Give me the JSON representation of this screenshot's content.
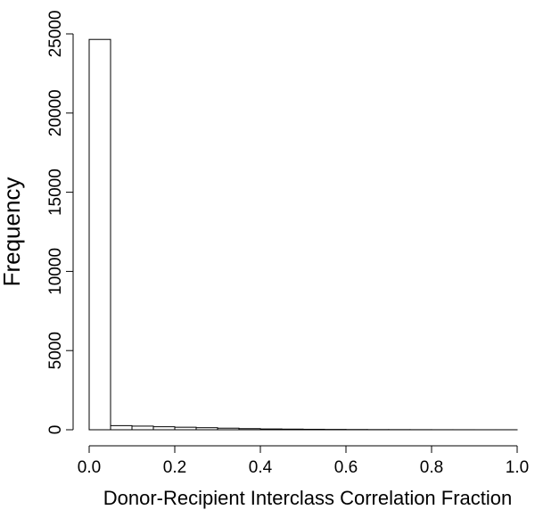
{
  "chart_data": {
    "type": "bar",
    "title": "",
    "xlabel": "Donor-Recipient Interclass Correlation Fraction",
    "ylabel": "Frequency",
    "bin_edges": [
      0.0,
      0.05,
      0.1,
      0.15,
      0.2,
      0.25,
      0.3,
      0.35,
      0.4,
      0.45,
      0.5,
      0.55,
      0.6,
      0.65,
      0.7,
      0.75,
      0.8,
      0.85,
      0.9,
      0.95,
      1.0
    ],
    "values": [
      24650,
      260,
      230,
      190,
      160,
      130,
      100,
      70,
      50,
      40,
      30,
      22,
      15,
      10,
      8,
      5,
      3,
      2,
      1,
      1
    ],
    "xlim": [
      0,
      1
    ],
    "ylim": [
      0,
      25000
    ],
    "x_ticks": [
      {
        "value": 0.0,
        "label": "0.0"
      },
      {
        "value": 0.2,
        "label": "0.2"
      },
      {
        "value": 0.4,
        "label": "0.4"
      },
      {
        "value": 0.6,
        "label": "0.6"
      },
      {
        "value": 0.8,
        "label": "0.8"
      },
      {
        "value": 1.0,
        "label": "1.0"
      }
    ],
    "y_ticks": [
      {
        "value": 0,
        "label": "0"
      },
      {
        "value": 5000,
        "label": "5000"
      },
      {
        "value": 10000,
        "label": "10000"
      },
      {
        "value": 15000,
        "label": "15000"
      },
      {
        "value": 20000,
        "label": "20000"
      },
      {
        "value": 25000,
        "label": "25000"
      }
    ],
    "grid": false,
    "legend": "none"
  }
}
